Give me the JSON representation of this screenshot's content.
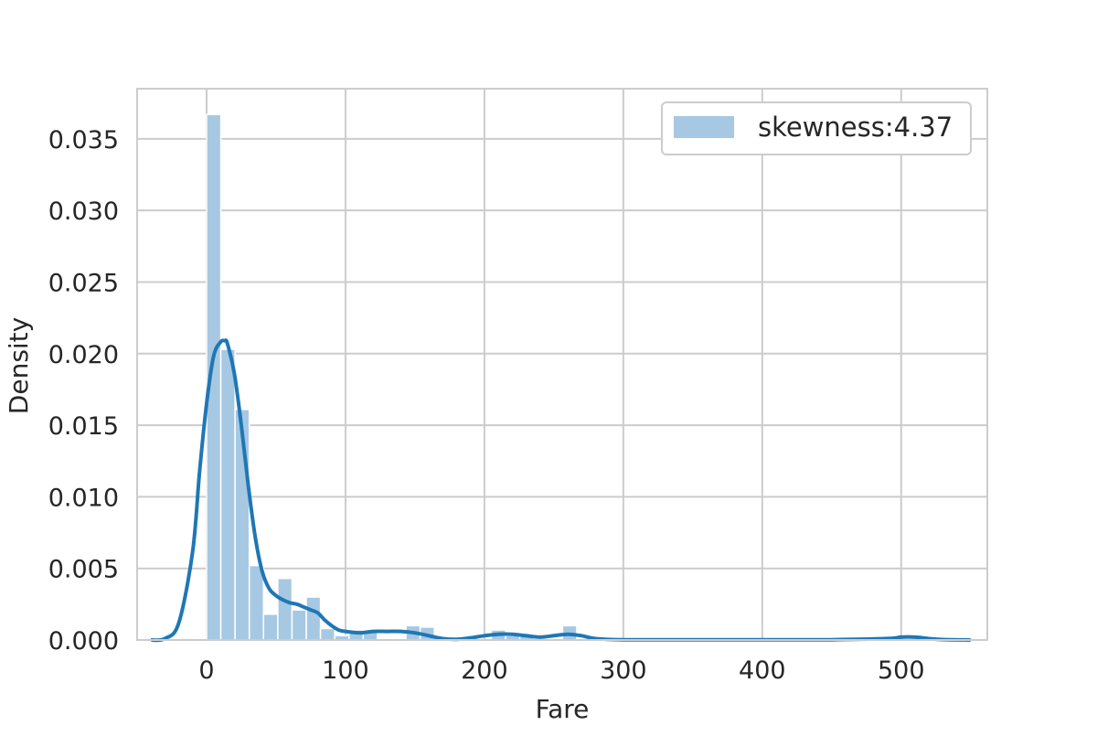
{
  "chart_data": {
    "type": "histogram",
    "xlabel": "Fare",
    "ylabel": "Density",
    "xlim": [
      -50,
      562
    ],
    "ylim": [
      0,
      0.0385
    ],
    "x_ticks": [
      0,
      100,
      200,
      300,
      400,
      500
    ],
    "x_tick_labels": [
      "0",
      "100",
      "200",
      "300",
      "400",
      "500"
    ],
    "y_ticks": [
      0,
      0.005,
      0.01,
      0.015,
      0.02,
      0.025,
      0.03,
      0.035
    ],
    "y_tick_labels": [
      "0.000",
      "0.005",
      "0.010",
      "0.015",
      "0.020",
      "0.025",
      "0.030",
      "0.035"
    ],
    "grid": true,
    "legend": {
      "position": "upper right",
      "entries": [
        {
          "label": "skewness:4.37",
          "color": "#a6c8e3"
        }
      ]
    },
    "histogram": {
      "bin_start": 0,
      "bin_width": 10.25,
      "fill_color": "#a6c8e3",
      "edge_color": "#ffffff",
      "values": [
        0.0367,
        0.0203,
        0.0161,
        0.0052,
        0.0018,
        0.0043,
        0.0021,
        0.003,
        0.0008,
        0.0003,
        0.0007,
        0.0007,
        0,
        0,
        0.001,
        0.0009,
        0,
        0,
        0,
        0,
        0.0007,
        0.0003,
        0.0003,
        0,
        0,
        0.001,
        0,
        0,
        0,
        0,
        0,
        0,
        0,
        0,
        0,
        0,
        0,
        0,
        0,
        0,
        0,
        0,
        0,
        0,
        0,
        0,
        0,
        0,
        0,
        0.0001
      ]
    },
    "kde": {
      "name": "",
      "color": "#1f77b4",
      "x": [
        -40,
        -30,
        -20,
        -10,
        -5,
        0,
        5,
        10,
        13,
        15,
        20,
        25,
        30,
        35,
        40,
        45,
        50,
        55,
        60,
        65,
        70,
        75,
        80,
        85,
        90,
        95,
        100,
        110,
        120,
        130,
        140,
        150,
        160,
        170,
        180,
        190,
        200,
        210,
        220,
        230,
        240,
        250,
        260,
        270,
        280,
        300,
        350,
        400,
        450,
        490,
        500,
        510,
        520,
        530,
        550
      ],
      "y": [
        0,
        0.0001,
        0.0012,
        0.0062,
        0.0118,
        0.0165,
        0.0198,
        0.0208,
        0.0209,
        0.0207,
        0.0186,
        0.015,
        0.0108,
        0.0072,
        0.0048,
        0.0036,
        0.0031,
        0.0028,
        0.0026,
        0.0025,
        0.0023,
        0.0021,
        0.0019,
        0.0014,
        0.001,
        0.0007,
        0.0006,
        0.0005,
        0.0006,
        0.0006,
        0.0006,
        0.0005,
        0.0003,
        0.0001,
        5e-05,
        0.00015,
        0.0003,
        0.0004,
        0.0004,
        0.0003,
        0.0002,
        0.0003,
        0.0004,
        0.0003,
        0.0001,
        2e-05,
        2e-05,
        2e-05,
        2e-05,
        0.0001,
        0.0002,
        0.0002,
        0.0001,
        3e-05,
        0
      ]
    }
  }
}
